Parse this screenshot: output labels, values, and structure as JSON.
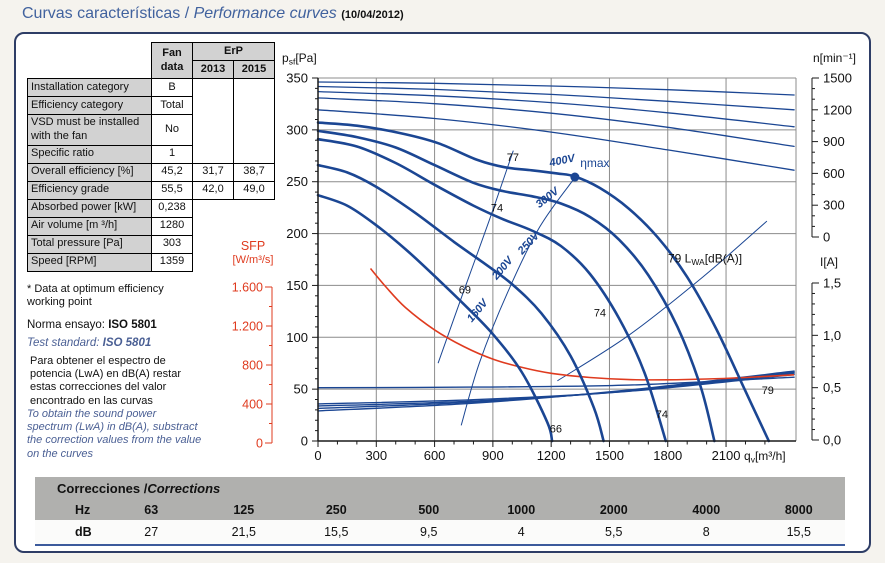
{
  "colors": {
    "navy": "#1b4693",
    "red": "#df3b1f",
    "grid": "#8c8c8c",
    "axis": "#1a1a1a",
    "title_blue": "#41629e",
    "note_blue": "#4a5f94",
    "cell_gray": "#d2d2d2",
    "corr_gray": "#b0b0ae",
    "border_navy": "#2e3d66"
  },
  "title": {
    "part1": "Curvas características / ",
    "part2": "Performance curves",
    "date": "(10/04/2012)"
  },
  "fan_table": {
    "headers": {
      "fan_data": "Fan\ndata",
      "erp": "ErP",
      "y2013": "2013",
      "y2015": "2015"
    },
    "rows": [
      {
        "label": "Installation category",
        "fan": "B"
      },
      {
        "label": "Efficiency category",
        "fan": "Total"
      },
      {
        "label": "VSD must be installed with the fan",
        "fan": "No"
      },
      {
        "label": "Specific ratio",
        "fan": "1"
      },
      {
        "label": "Overall efficiency [%]",
        "fan": "45,2",
        "e2013": "31,7",
        "e2015": "38,7"
      },
      {
        "label": "Efficiency grade",
        "fan": "55,5",
        "e2013": "42,0",
        "e2015": "49,0"
      },
      {
        "label": "Absorbed power [kW]",
        "fan": "0,238"
      },
      {
        "label": "Air volume [m ³/h]",
        "fan": "1280"
      },
      {
        "label": "Total pressure [Pa]",
        "fan": "303"
      },
      {
        "label": "Speed [RPM]",
        "fan": "1359"
      }
    ]
  },
  "notes": {
    "star": "* Data at optimum efficiency working point",
    "norma_label": "Norma ensayo: ",
    "norma_value": "ISO 5801",
    "test_label": "Test standard: ",
    "test_value": "ISO 5801",
    "para_es": "Para obtener el espectro de potencia (LwA) en dB(A) restar estas correcciones del valor encontrado en las curvas",
    "para_en": "To obtain the sound power spectrum (LwA) in dB(A), substract the correction values from the value on the curves"
  },
  "corrections": {
    "title_es": "Correcciones / ",
    "title_en": "Corrections",
    "hz_label": "Hz",
    "db_label": "dB",
    "hz": [
      "63",
      "125",
      "250",
      "500",
      "1000",
      "2000",
      "4000",
      "8000"
    ],
    "db": [
      "27",
      "21,5",
      "15,5",
      "9,5",
      "4",
      "5,5",
      "8",
      "15,5"
    ]
  },
  "chart_data": {
    "type": "line",
    "x_axis": {
      "label_parts": [
        {
          "t": "q"
        },
        {
          "t": "v",
          "sub": true
        },
        {
          "t": "[m³/h]"
        }
      ],
      "min": 0,
      "max": 2460,
      "ticks": [
        {
          "v": 0,
          "t": "0"
        },
        {
          "v": 300,
          "t": "300"
        },
        {
          "v": 600,
          "t": "600"
        },
        {
          "v": 900,
          "t": "900"
        },
        {
          "v": 1200,
          "t": "1200"
        },
        {
          "v": 1500,
          "t": "1500"
        },
        {
          "v": 1800,
          "t": "1800"
        },
        {
          "v": 2100,
          "t": "2100"
        }
      ],
      "minor_step": 100,
      "minor_max": 2400
    },
    "y_pressure": {
      "label_parts": [
        {
          "t": "p"
        },
        {
          "t": "sf",
          "sub": true
        },
        {
          "t": "[Pa]"
        }
      ],
      "min": 0,
      "max": 350,
      "ticks": [
        {
          "v": 350,
          "t": "350"
        },
        {
          "v": 300,
          "t": "300"
        },
        {
          "v": 250,
          "t": "250"
        },
        {
          "v": 200,
          "t": "200"
        },
        {
          "v": 150,
          "t": "150"
        },
        {
          "v": 100,
          "t": "100"
        },
        {
          "v": 50,
          "t": "50"
        },
        {
          "v": 0,
          "t": "0"
        }
      ],
      "minor_step": 10
    },
    "y_rpm": {
      "label": "n[min⁻¹]",
      "min": 0,
      "max": 1500,
      "ticks": [
        {
          "v": 1500,
          "t": "1500"
        },
        {
          "v": 1200,
          "t": "1200"
        },
        {
          "v": 900,
          "t": "900"
        },
        {
          "v": 600,
          "t": "600"
        },
        {
          "v": 300,
          "t": "300"
        },
        {
          "v": 0,
          "t": "0"
        }
      ],
      "minor_step": 100
    },
    "y_current": {
      "label": "I[A]",
      "min": 0,
      "max": 1.5,
      "ticks": [
        {
          "v": 1.5,
          "t": "1,5"
        },
        {
          "v": 1.0,
          "t": "1,0"
        },
        {
          "v": 0.5,
          "t": "0,5"
        },
        {
          "v": 0,
          "t": "0,0"
        }
      ],
      "minor_step": 0.1
    },
    "y_sfp": {
      "label1": "SFP",
      "label2": "[W/m³/s]",
      "min": 0,
      "max": 1600,
      "ticks": [
        {
          "v": 1600,
          "t": "1.600"
        },
        {
          "v": 1200,
          "t": "1.200"
        },
        {
          "v": 800,
          "t": "800"
        },
        {
          "v": 400,
          "t": "400"
        },
        {
          "v": 0,
          "t": "0"
        }
      ],
      "minor_step": 200
    },
    "pressure_curves": [
      {
        "name": "400V",
        "points": [
          [
            0,
            307
          ],
          [
            200,
            304
          ],
          [
            420,
            297
          ],
          [
            620,
            287
          ],
          [
            820,
            271
          ],
          [
            960,
            264
          ],
          [
            1100,
            261
          ],
          [
            1230,
            258
          ],
          [
            1322,
            255
          ],
          [
            1450,
            244
          ],
          [
            1600,
            224
          ],
          [
            1750,
            196
          ],
          [
            1900,
            158
          ],
          [
            2050,
            108
          ],
          [
            2200,
            48
          ],
          [
            2320,
            0
          ]
        ]
      },
      {
        "name": "300V",
        "points": [
          [
            0,
            299
          ],
          [
            200,
            293
          ],
          [
            400,
            283
          ],
          [
            600,
            266
          ],
          [
            800,
            249
          ],
          [
            950,
            241
          ],
          [
            1100,
            236
          ],
          [
            1250,
            229
          ],
          [
            1400,
            216
          ],
          [
            1550,
            194
          ],
          [
            1700,
            160
          ],
          [
            1850,
            110
          ],
          [
            1970,
            52
          ],
          [
            2040,
            0
          ]
        ]
      },
      {
        "name": "250V",
        "points": [
          [
            0,
            291
          ],
          [
            200,
            284
          ],
          [
            400,
            268
          ],
          [
            600,
            247
          ],
          [
            800,
            227
          ],
          [
            950,
            214
          ],
          [
            1100,
            203
          ],
          [
            1250,
            188
          ],
          [
            1400,
            161
          ],
          [
            1550,
            118
          ],
          [
            1680,
            66
          ],
          [
            1790,
            0
          ]
        ]
      },
      {
        "name": "200V",
        "points": [
          [
            0,
            266
          ],
          [
            150,
            259
          ],
          [
            300,
            245
          ],
          [
            500,
            220
          ],
          [
            700,
            192
          ],
          [
            850,
            172
          ],
          [
            1000,
            151
          ],
          [
            1150,
            123
          ],
          [
            1300,
            82
          ],
          [
            1420,
            32
          ],
          [
            1470,
            0
          ]
        ]
      },
      {
        "name": "160V",
        "points": [
          [
            0,
            237
          ],
          [
            150,
            227
          ],
          [
            300,
            208
          ],
          [
            450,
            185
          ],
          [
            600,
            159
          ],
          [
            750,
            132
          ],
          [
            900,
            103
          ],
          [
            1050,
            66
          ],
          [
            1180,
            18
          ],
          [
            1205,
            0
          ]
        ]
      }
    ],
    "rpm_curves": [
      {
        "name": "400V",
        "points": [
          [
            0,
            1462
          ],
          [
            600,
            1450
          ],
          [
            1200,
            1425
          ],
          [
            1800,
            1390
          ],
          [
            2450,
            1340
          ]
        ]
      },
      {
        "name": "300V",
        "points": [
          [
            0,
            1420
          ],
          [
            600,
            1392
          ],
          [
            1200,
            1345
          ],
          [
            1800,
            1280
          ],
          [
            2450,
            1200
          ]
        ]
      },
      {
        "name": "250V",
        "points": [
          [
            0,
            1372
          ],
          [
            600,
            1332
          ],
          [
            1200,
            1268
          ],
          [
            1800,
            1172
          ],
          [
            2450,
            1040
          ]
        ]
      },
      {
        "name": "200V",
        "points": [
          [
            0,
            1312
          ],
          [
            600,
            1258
          ],
          [
            1200,
            1168
          ],
          [
            1800,
            1035
          ],
          [
            2450,
            855
          ]
        ]
      },
      {
        "name": "160V",
        "points": [
          [
            0,
            1200
          ],
          [
            600,
            1118
          ],
          [
            1200,
            990
          ],
          [
            1800,
            822
          ],
          [
            2450,
            630
          ]
        ]
      }
    ],
    "current_curves": [
      {
        "name": "400V",
        "points": [
          [
            0,
            0.5
          ],
          [
            800,
            0.505
          ],
          [
            1600,
            0.525
          ],
          [
            2450,
            0.6
          ]
        ]
      },
      {
        "name": "300V",
        "points": [
          [
            0,
            0.345
          ],
          [
            800,
            0.385
          ],
          [
            1600,
            0.465
          ],
          [
            2450,
            0.625
          ]
        ]
      },
      {
        "name": "250V",
        "points": [
          [
            0,
            0.325
          ],
          [
            800,
            0.372
          ],
          [
            1600,
            0.468
          ],
          [
            2450,
            0.638
          ]
        ]
      },
      {
        "name": "200V",
        "points": [
          [
            0,
            0.302
          ],
          [
            800,
            0.362
          ],
          [
            1600,
            0.472
          ],
          [
            2450,
            0.648
          ]
        ]
      },
      {
        "name": "160V",
        "points": [
          [
            0,
            0.278
          ],
          [
            800,
            0.352
          ],
          [
            1600,
            0.478
          ],
          [
            2450,
            0.658
          ]
        ]
      }
    ],
    "sfp_curve": {
      "points": [
        [
          270,
          1790
        ],
        [
          350,
          1600
        ],
        [
          450,
          1390
        ],
        [
          600,
          1160
        ],
        [
          750,
          990
        ],
        [
          900,
          860
        ],
        [
          1050,
          775
        ],
        [
          1200,
          715
        ],
        [
          1400,
          672
        ],
        [
          1600,
          650
        ],
        [
          1800,
          648
        ],
        [
          2000,
          656
        ],
        [
          2200,
          672
        ],
        [
          2450,
          700
        ]
      ]
    },
    "guide_lines": [
      {
        "name": "lwa-guide-left",
        "points": [
          [
            618,
            75
          ],
          [
            745,
            142
          ],
          [
            880,
            212
          ],
          [
            1005,
            280
          ]
        ]
      },
      {
        "name": "eta-guide",
        "points": [
          [
            1322,
            254
          ],
          [
            1140,
            206
          ],
          [
            975,
            143
          ],
          [
            830,
            75
          ],
          [
            737,
            15
          ]
        ]
      },
      {
        "name": "lwa-guide-right",
        "points": [
          [
            1232,
            58
          ],
          [
            1600,
            102
          ],
          [
            1980,
            158
          ],
          [
            2310,
            212
          ]
        ]
      }
    ],
    "point_labels": [
      {
        "t": "77",
        "q": 1003,
        "p": 274
      },
      {
        "t": "74",
        "q": 921,
        "p": 225
      },
      {
        "t": "69",
        "q": 756,
        "p": 146
      },
      {
        "t": "66",
        "q": 1224,
        "p": 12
      },
      {
        "t": "74",
        "q": 1770,
        "p": 26
      },
      {
        "t": "74",
        "q": 1451,
        "p": 124
      },
      {
        "t": "79",
        "q": 2315,
        "p": 49
      }
    ],
    "voltage_labels": [
      {
        "t": "400V",
        "q": 1256,
        "p": 271,
        "rot": -12
      },
      {
        "t": "300V",
        "q": 1178,
        "p": 235,
        "rot": -38
      },
      {
        "t": "250V",
        "q": 1081,
        "p": 191,
        "rot": -47
      },
      {
        "t": "200V",
        "q": 947,
        "p": 167,
        "rot": -50
      },
      {
        "t": "160V",
        "q": 818,
        "p": 126,
        "rot": -50
      }
    ],
    "eta_max": {
      "q": 1322,
      "p": 254.5,
      "label": "ηmax",
      "label_q": 1425,
      "label_p": 268
    },
    "lwa_legend": {
      "value": "79 ",
      "parts": [
        {
          "t": "L"
        },
        {
          "t": "WA",
          "sub": true
        },
        {
          "t": "[dB(A)]"
        }
      ],
      "q": 1801,
      "p": 176
    }
  }
}
